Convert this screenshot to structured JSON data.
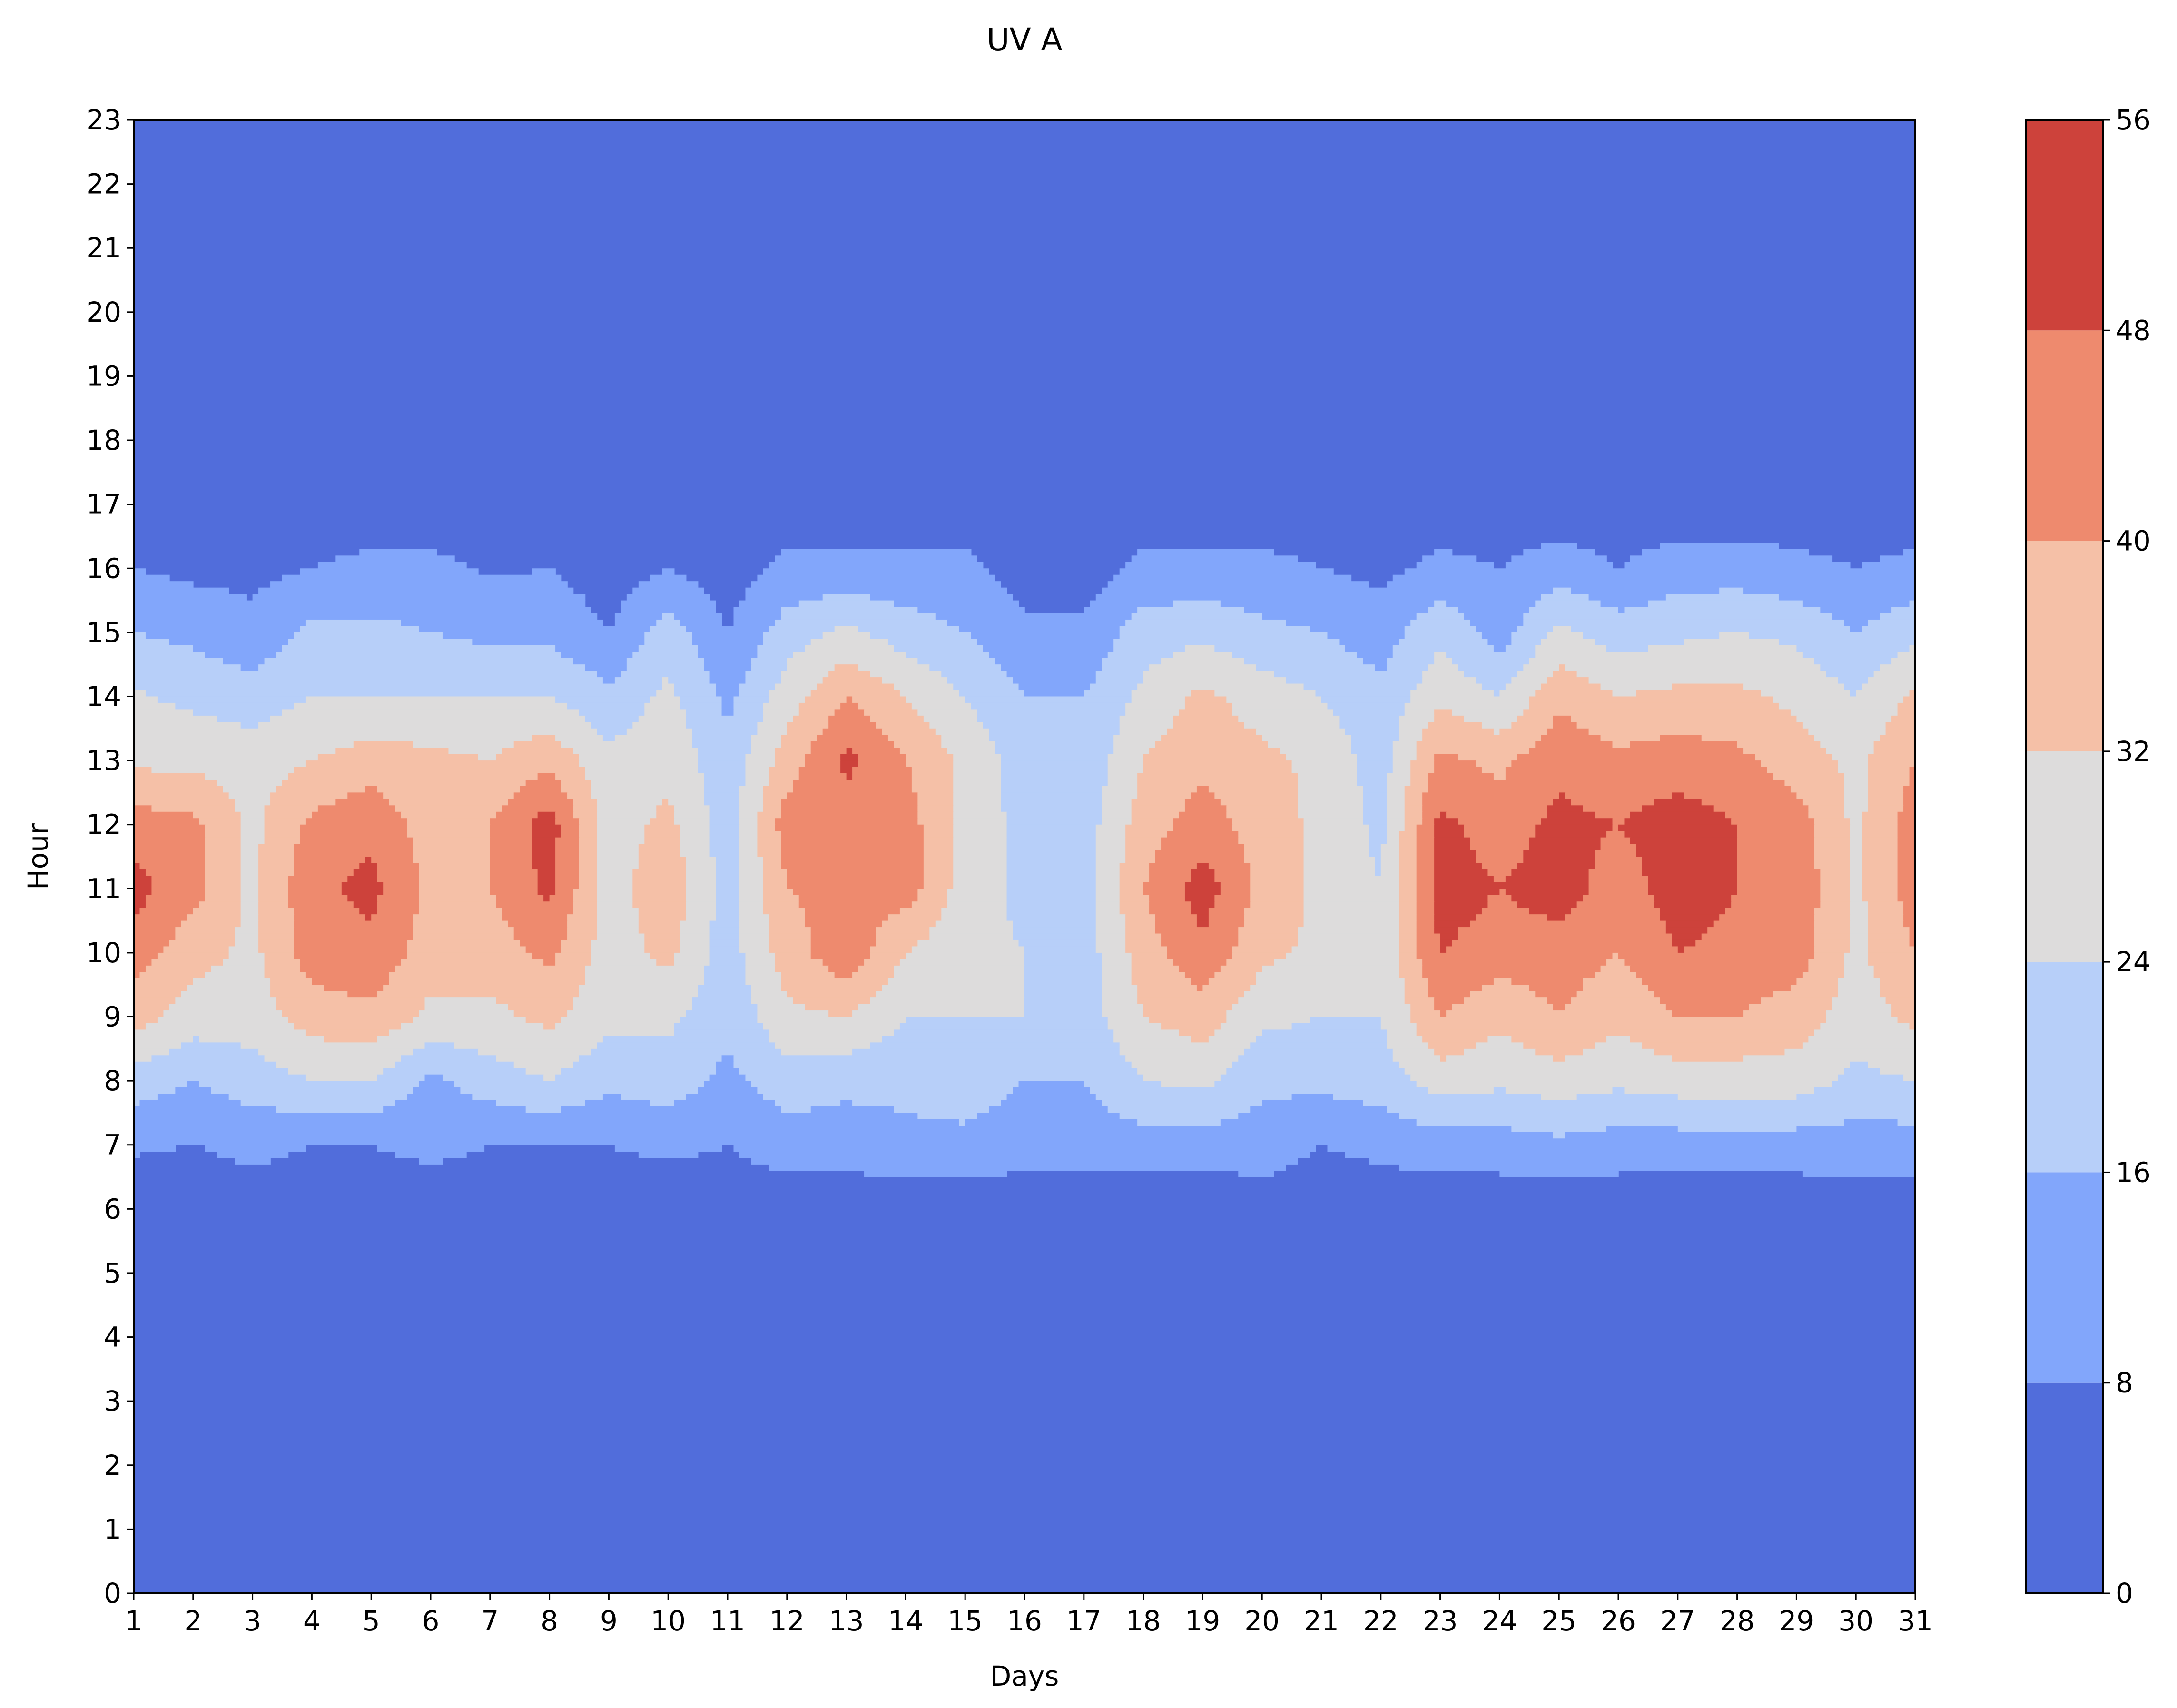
{
  "chart_data": {
    "type": "heatmap",
    "subtype": "filled-contour",
    "title": "UV A",
    "xlabel": "Days",
    "ylabel": "Hour",
    "x_ticks": [
      1,
      2,
      3,
      4,
      5,
      6,
      7,
      8,
      9,
      10,
      11,
      12,
      13,
      14,
      15,
      16,
      17,
      18,
      19,
      20,
      21,
      22,
      23,
      24,
      25,
      26,
      27,
      28,
      29,
      30,
      31
    ],
    "y_ticks": [
      0,
      1,
      2,
      3,
      4,
      5,
      6,
      7,
      8,
      9,
      10,
      11,
      12,
      13,
      14,
      15,
      16,
      17,
      18,
      19,
      20,
      21,
      22,
      23
    ],
    "xlim": [
      1,
      31
    ],
    "ylim": [
      0,
      23
    ],
    "colorbar": {
      "levels": [
        0,
        8,
        16,
        24,
        32,
        40,
        48,
        56
      ],
      "tick_labels": [
        "0",
        "8",
        "16",
        "24",
        "32",
        "40",
        "48",
        "56"
      ],
      "colors": [
        "#516ddb",
        "#82a6fb",
        "#b7cff9",
        "#dddcdc",
        "#f5c0a7",
        "#ee8a6e",
        "#cd423b"
      ]
    },
    "days": [
      1,
      2,
      3,
      4,
      5,
      6,
      7,
      8,
      9,
      10,
      11,
      12,
      13,
      14,
      15,
      16,
      17,
      18,
      19,
      20,
      21,
      22,
      23,
      24,
      25,
      26,
      27,
      28,
      29,
      30,
      31
    ],
    "hours": [
      6,
      7,
      8,
      9,
      10,
      11,
      12,
      13,
      14,
      15,
      16,
      17
    ],
    "uv_by_day": [
      [
        3,
        9,
        20,
        36,
        44,
        51,
        44,
        30,
        25,
        16,
        8,
        3
      ],
      [
        2,
        8,
        16,
        28,
        35,
        43,
        42,
        30,
        22,
        14,
        6,
        2
      ],
      [
        4,
        10,
        20,
        28,
        30,
        30,
        30,
        28,
        20,
        10,
        6,
        3
      ],
      [
        3,
        8,
        24,
        36,
        44,
        46,
        42,
        32,
        24,
        18,
        8,
        3
      ],
      [
        3,
        8,
        24,
        38,
        46,
        50,
        46,
        36,
        24,
        18,
        10,
        3
      ],
      [
        3,
        10,
        14,
        30,
        36,
        38,
        36,
        34,
        24,
        16,
        10,
        3
      ],
      [
        3,
        8,
        20,
        30,
        36,
        40,
        40,
        32,
        24,
        14,
        7,
        3
      ],
      [
        3,
        8,
        24,
        34,
        42,
        50,
        52,
        38,
        24,
        14,
        8,
        3
      ],
      [
        3,
        8,
        18,
        26,
        28,
        28,
        28,
        26,
        18,
        8,
        4,
        2
      ],
      [
        2,
        10,
        20,
        26,
        34,
        38,
        34,
        30,
        26,
        20,
        8,
        3
      ],
      [
        3,
        8,
        14,
        18,
        20,
        20,
        20,
        18,
        14,
        8,
        4,
        2
      ],
      [
        3,
        12,
        20,
        30,
        36,
        40,
        44,
        36,
        28,
        20,
        10,
        3
      ],
      [
        2,
        12,
        18,
        32,
        46,
        42,
        44,
        50,
        40,
        26,
        10,
        3
      ],
      [
        3,
        14,
        18,
        24,
        32,
        44,
        44,
        40,
        32,
        20,
        10,
        3
      ],
      [
        3,
        14,
        20,
        24,
        26,
        28,
        28,
        30,
        24,
        16,
        10,
        3
      ],
      [
        2,
        12,
        16,
        24,
        24,
        22,
        22,
        20,
        16,
        10,
        4,
        2
      ],
      [
        3,
        12,
        16,
        20,
        20,
        20,
        20,
        18,
        16,
        10,
        4,
        2
      ],
      [
        3,
        12,
        24,
        32,
        36,
        40,
        36,
        32,
        26,
        20,
        10,
        3
      ],
      [
        2,
        12,
        26,
        36,
        46,
        52,
        44,
        38,
        34,
        22,
        10,
        3
      ],
      [
        4,
        12,
        18,
        26,
        34,
        38,
        36,
        34,
        28,
        18,
        10,
        3
      ],
      [
        3,
        8,
        18,
        24,
        30,
        30,
        30,
        30,
        24,
        16,
        8,
        3
      ],
      [
        3,
        10,
        20,
        24,
        26,
        24,
        22,
        20,
        18,
        12,
        6,
        3
      ],
      [
        3,
        12,
        28,
        40,
        48,
        52,
        50,
        42,
        30,
        22,
        10,
        3
      ],
      [
        3,
        12,
        26,
        34,
        44,
        48,
        44,
        38,
        24,
        12,
        8,
        3
      ],
      [
        3,
        14,
        28,
        40,
        44,
        52,
        50,
        46,
        38,
        26,
        12,
        3
      ],
      [
        3,
        12,
        26,
        34,
        40,
        44,
        48,
        42,
        32,
        20,
        8,
        3
      ],
      [
        3,
        12,
        28,
        40,
        48,
        52,
        52,
        44,
        34,
        22,
        12,
        3
      ],
      [
        3,
        12,
        28,
        40,
        46,
        48,
        48,
        42,
        34,
        24,
        12,
        3
      ],
      [
        3,
        12,
        28,
        36,
        44,
        46,
        44,
        36,
        30,
        22,
        10,
        3
      ],
      [
        4,
        12,
        22,
        28,
        30,
        30,
        30,
        30,
        24,
        16,
        8,
        3
      ],
      [
        4,
        12,
        24,
        34,
        40,
        44,
        44,
        40,
        34,
        22,
        10,
        3
      ]
    ]
  }
}
